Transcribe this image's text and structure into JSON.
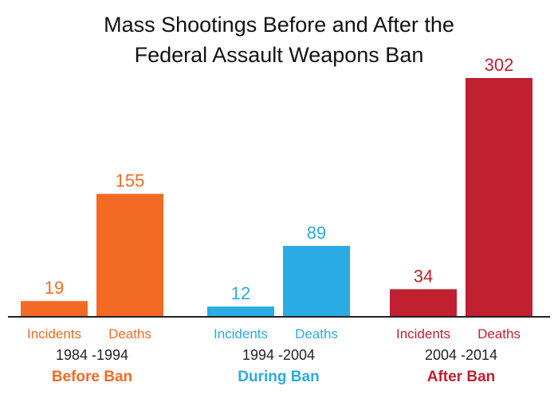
{
  "chart_data": {
    "type": "bar",
    "title_lines": [
      "Mass Shootings Before and After the",
      "Federal Assault Weapons Ban"
    ],
    "ylim": [
      0,
      302
    ],
    "grid": false,
    "groups": [
      {
        "period": "1984 -1994",
        "label": "Before Ban",
        "color": "#F26A24",
        "bars": [
          {
            "name": "Incidents",
            "value": 19
          },
          {
            "name": "Deaths",
            "value": 155
          }
        ]
      },
      {
        "period": "1994 -2004",
        "label": "During Ban",
        "color": "#2AABE2",
        "bars": [
          {
            "name": "Incidents",
            "value": 12
          },
          {
            "name": "Deaths",
            "value": 89
          }
        ]
      },
      {
        "period": "2004 -2014",
        "label": "After Ban",
        "color": "#C0202F",
        "bars": [
          {
            "name": "Incidents",
            "value": 34
          },
          {
            "name": "Deaths",
            "value": 302
          }
        ]
      }
    ]
  }
}
